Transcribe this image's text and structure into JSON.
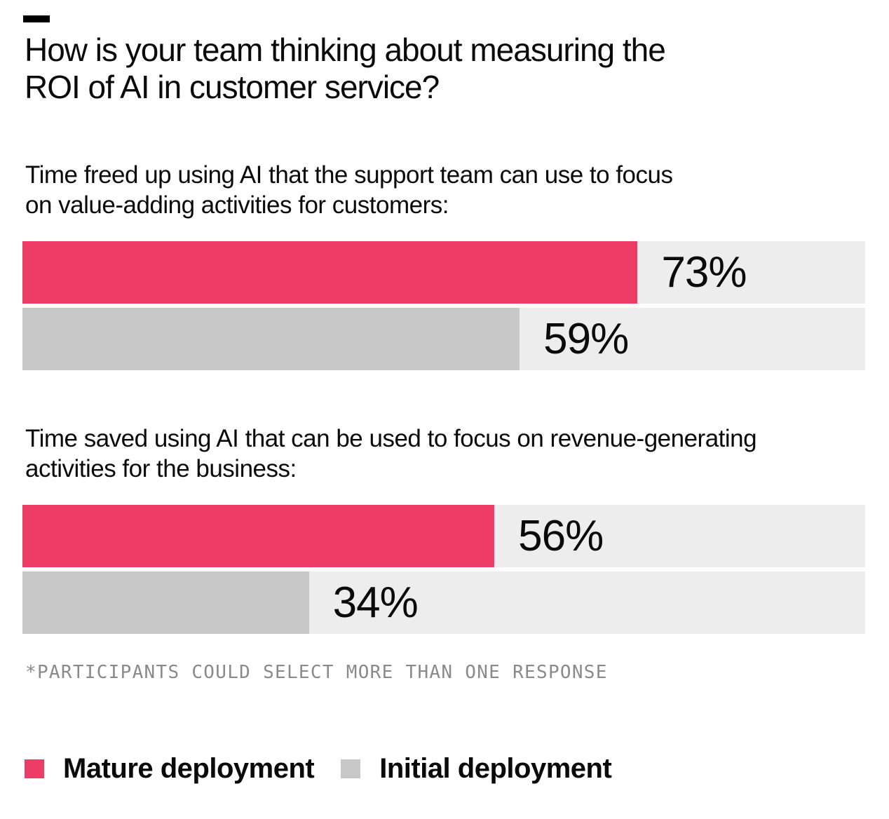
{
  "title_text": "How is your team thinking about measuring the\nROI of AI in customer service?",
  "footnote": "*PARTICIPANTS COULD SELECT MORE THAN ONE RESPONSE",
  "legend": [
    {
      "label": "Mature deployment",
      "color": "#ED3C66"
    },
    {
      "label": "Initial deployment",
      "color": "#C7C7C7"
    }
  ],
  "colors": {
    "mature": "#ED3C66",
    "initial": "#C7C7C7",
    "track": "#EDEDED",
    "footnote_text": "#8A8A8A",
    "text": "#0A0A0A",
    "background": "#FFFFFF"
  },
  "chart_data": {
    "type": "bar",
    "orientation": "horizontal",
    "title": "How is your team thinking about measuring the ROI of AI in customer service?",
    "unit": "%",
    "xlim": [
      0,
      100
    ],
    "grid": false,
    "legend_position": "bottom",
    "series_names": [
      "Mature deployment",
      "Initial deployment"
    ],
    "groups": [
      {
        "question": "Time freed up using AI that the support team can use to focus\non value-adding activities for customers:",
        "bars": [
          {
            "series": "Mature deployment",
            "value": 73,
            "label": "73%"
          },
          {
            "series": "Initial deployment",
            "value": 59,
            "label": "59%"
          }
        ]
      },
      {
        "question": "Time saved using AI that can be used to focus on revenue-generating\nactivities for the business:",
        "bars": [
          {
            "series": "Mature deployment",
            "value": 56,
            "label": "56%"
          },
          {
            "series": "Initial deployment",
            "value": 34,
            "label": "34%"
          }
        ]
      }
    ],
    "footnote": "*PARTICIPANTS COULD SELECT MORE THAN ONE RESPONSE"
  }
}
